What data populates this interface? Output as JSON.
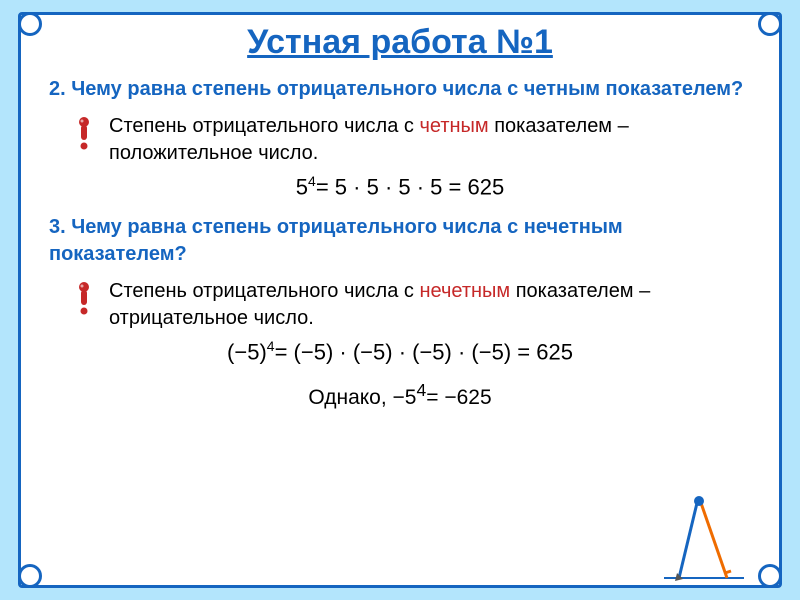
{
  "title": "Устная работа №1",
  "q2": {
    "question": "2. Чему равна степень отрицательного числа с четным показателем?",
    "answer_part1": "Степень отрицательного числа с ",
    "answer_highlight": "четным",
    "answer_part2": " показателем – положительное число.",
    "formula_html": "5<sup>4</sup>= 5 · 5 · 5 · 5 = 625"
  },
  "q3": {
    "question": "3. Чему равна степень отрицательного числа с нечетным показателем?",
    "answer_part1": "Степень отрицательного числа с ",
    "answer_highlight": "нечетным",
    "answer_part2": " показателем – отрицательное число.",
    "formula_html": "(−5)<sup>4</sup>= (−5) · (−5) · (−5) · (−5) = 625",
    "however_html": "Однако, −5<sup>4</sup>= −625"
  },
  "colors": {
    "page_bg": "#b3e5fc",
    "frame_border": "#1565c0",
    "title_color": "#1565c0",
    "question_color": "#1565c0",
    "text_color": "#000000",
    "highlight_color": "#c62828"
  },
  "typography": {
    "title_fontsize": 34,
    "question_fontsize": 20,
    "answer_fontsize": 20,
    "formula_fontsize": 22
  }
}
